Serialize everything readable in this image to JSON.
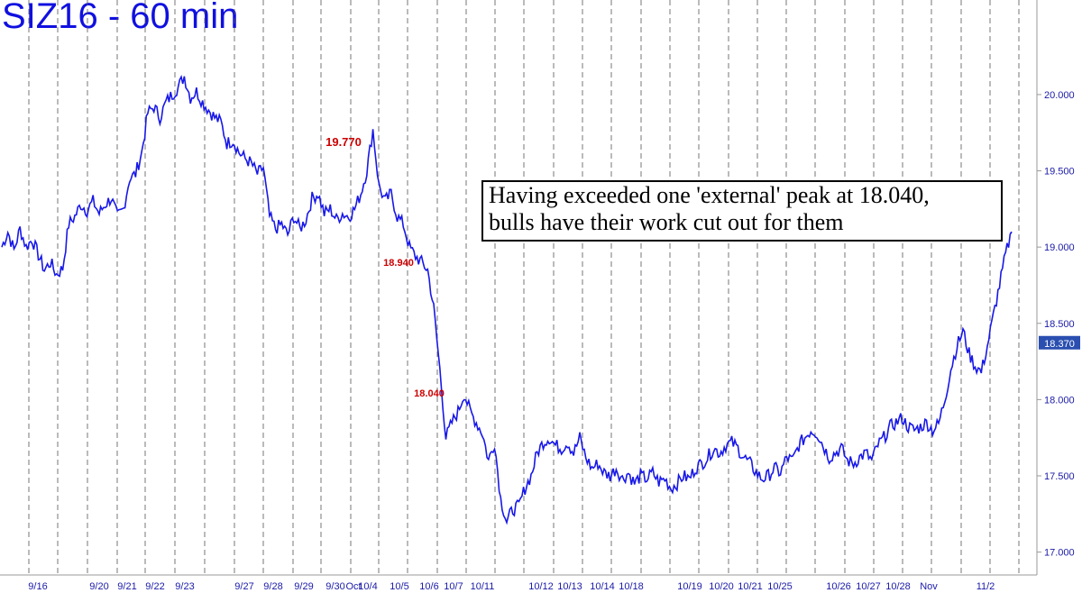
{
  "chart_data": {
    "type": "line",
    "title": "SIZ16 - 60 min",
    "ylim": [
      16.85,
      20.62
    ],
    "y_ticks": [
      17.0,
      17.5,
      18.0,
      18.5,
      19.0,
      19.5,
      20.0
    ],
    "y_tick_labels": [
      "17.000",
      "17.500",
      "18.000",
      "18.500",
      "19.000",
      "19.500",
      "20.000"
    ],
    "x_tick_labels": [
      "9/16",
      "9/20",
      "9/21",
      "9/22",
      "9/23",
      "9/27",
      "9/28",
      "9/29",
      "9/30",
      "Oct",
      "10/4",
      "10/5",
      "10/6",
      "10/7",
      "10/11",
      "10/12",
      "10/13",
      "10/14",
      "10/18",
      "10/19",
      "10/20",
      "10/21",
      "10/25",
      "10/26",
      "10/27",
      "10/28",
      "Nov",
      "11/2"
    ],
    "grid": "vertical dashed at session boundaries",
    "last_price": 18.37,
    "last_price_label": "18.370",
    "series": [
      {
        "values": [
          19.0,
          19.1,
          18.98,
          19.12,
          19.0,
          19.05,
          18.95,
          18.85,
          18.9,
          18.82,
          18.86,
          19.15,
          19.2,
          19.28,
          19.24,
          19.3,
          19.22,
          19.28,
          19.32,
          19.2,
          19.25,
          19.45,
          19.48,
          19.62,
          19.88,
          19.92,
          19.85,
          19.95,
          20.0,
          20.05,
          20.12,
          19.98,
          20.02,
          19.95,
          19.9,
          19.85,
          19.82,
          19.68,
          19.7,
          19.62,
          19.58,
          19.55,
          19.48,
          19.52,
          19.2,
          19.12,
          19.15,
          19.08,
          19.2,
          19.12,
          19.18,
          19.32,
          19.35,
          19.22,
          19.25,
          19.18,
          19.22,
          19.2,
          19.25,
          19.35,
          19.5,
          19.77,
          19.4,
          19.3,
          19.35,
          19.2,
          19.15,
          19.0,
          18.94,
          18.9,
          18.85,
          18.6,
          18.2,
          17.75,
          17.85,
          17.92,
          18.04,
          17.92,
          17.85,
          17.78,
          17.6,
          17.72,
          17.35,
          17.2,
          17.28,
          17.3,
          17.42,
          17.5,
          17.65,
          17.72,
          17.75,
          17.7,
          17.68,
          17.72,
          17.65,
          17.75,
          17.62,
          17.55,
          17.58,
          17.52,
          17.5,
          17.55,
          17.48,
          17.52,
          17.45,
          17.5,
          17.48,
          17.52,
          17.46,
          17.48,
          17.42,
          17.45,
          17.5,
          17.48,
          17.55,
          17.58,
          17.62,
          17.68,
          17.65,
          17.7,
          17.72,
          17.68,
          17.62,
          17.58,
          17.52,
          17.48,
          17.5,
          17.55,
          17.52,
          17.62,
          17.6,
          17.7,
          17.75,
          17.8,
          17.78,
          17.7,
          17.62,
          17.65,
          17.68,
          17.6,
          17.58,
          17.62,
          17.65,
          17.6,
          17.7,
          17.75,
          17.82,
          17.85,
          17.88,
          17.82,
          17.8,
          17.82,
          17.85,
          17.8,
          17.84,
          18.0,
          18.2,
          18.35,
          18.45,
          18.3,
          18.22,
          18.18,
          18.35,
          18.55,
          18.75,
          18.95,
          19.1
        ],
        "dashed_from": 169
      }
    ],
    "annotations": [
      {
        "label": "19.770",
        "value": 19.77
      },
      {
        "label": "18.940",
        "value": 18.94
      },
      {
        "label": "18.040",
        "value": 18.04
      }
    ],
    "note_lines": [
      "Having exceeded one 'external' peak at 18.040,",
      "bulls have their work cut out for them"
    ]
  }
}
